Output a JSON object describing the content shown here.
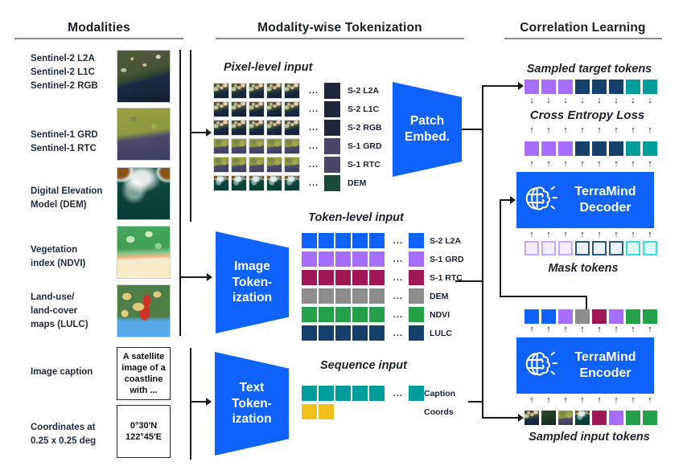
{
  "colors": {
    "blue": "#0f62fe",
    "purple": "#a56eff",
    "magenta": "#9f1853",
    "gray": "#8d8d8d",
    "green": "#24a148",
    "navy": "#15406b",
    "teal": "#009d9a",
    "yellow": "#f1c21b",
    "mask_purple_fill": "#f3edff",
    "mask_purple_border": "#c9a9ff",
    "mask_blue_fill": "#e9f2f9",
    "mask_blue_border": "#30567d",
    "mask_teal_fill": "#dbfbf4",
    "mask_teal_border": "#3ddbd9",
    "chip_s2": "#20263a",
    "chip_s1": "#4a4668",
    "chip_dem": "#1b4a38",
    "block_blue": "#0f62fe",
    "underline_gray": "#8a8a8a"
  },
  "modalities": {
    "title": "Modalities",
    "groups": [
      {
        "lines": [
          "Sentinel-2 L2A",
          "Sentinel-2 L1C",
          "Sentinel-2 RGB"
        ]
      },
      {
        "lines": [
          "Sentinel-1 GRD",
          "Sentinel-1 RTC"
        ]
      },
      {
        "lines": [
          "Digital Elevation",
          "Model (DEM)"
        ]
      },
      {
        "lines": [
          "Vegetation",
          "index (NDVI)"
        ]
      },
      {
        "lines": [
          "Land-use/",
          "land-cover",
          "maps (LULC)"
        ]
      },
      {
        "lines": [
          "Image caption"
        ],
        "box_lines": [
          "A satellite",
          "image of a",
          "coastline",
          "with ..."
        ]
      },
      {
        "lines": [
          "Coordinates at",
          "0.25 x 0.25 deg"
        ],
        "box_lines": [
          "0°30′N",
          "122°45′E"
        ]
      }
    ]
  },
  "tokenization": {
    "title": "Modality-wise Tokenization",
    "pixel_input": {
      "label": "Pixel-level input",
      "ellipsis": "...",
      "rows": [
        {
          "label": "S-2 L2A",
          "tile": "s2",
          "chip": "chip_s2"
        },
        {
          "label": "S-2 L1C",
          "tile": "s2",
          "chip": "chip_s2"
        },
        {
          "label": "S-2 RGB",
          "tile": "s2",
          "chip": "chip_s2"
        },
        {
          "label": "S-1 GRD",
          "tile": "s1",
          "chip": "chip_s1"
        },
        {
          "label": "S-1 RTC",
          "tile": "s1",
          "chip": "chip_s1"
        },
        {
          "label": "DEM",
          "tile": "dem",
          "chip": "chip_dem"
        }
      ]
    },
    "patch_embed": {
      "lines": [
        "Patch",
        "Embed."
      ]
    },
    "image_tokenizer": {
      "lines": [
        "Image",
        "Token-",
        "ization"
      ]
    },
    "token_input": {
      "label": "Token-level input",
      "ellipsis": "...",
      "rows": [
        {
          "label": "S-2 L2A",
          "color": "blue"
        },
        {
          "label": "S-1 GRD",
          "color": "purple"
        },
        {
          "label": "S-1 RTC",
          "color": "magenta"
        },
        {
          "label": "DEM",
          "color": "gray"
        },
        {
          "label": "NDVI",
          "color": "green"
        },
        {
          "label": "LULC",
          "color": "navy"
        }
      ]
    },
    "text_tokenizer": {
      "lines": [
        "Text",
        "Token-",
        "ization"
      ]
    },
    "sequence_input": {
      "label": "Sequence input",
      "ellipsis": "...",
      "rows": [
        {
          "label": "Caption",
          "color": "teal",
          "count": 5,
          "chip": true
        },
        {
          "label": "Coords",
          "color": "yellow",
          "count": 2,
          "chip": false
        }
      ]
    }
  },
  "correlation": {
    "title": "Correlation Learning",
    "sampled_target_label": "Sampled target tokens",
    "loss_label": "Cross Entropy Loss",
    "decoder": {
      "lines": [
        "TerraMind",
        "Decoder"
      ]
    },
    "mask_label": "Mask tokens",
    "encoder": {
      "lines": [
        "TerraMind",
        "Encoder"
      ]
    },
    "sampled_input_label": "Sampled input tokens",
    "rows": {
      "target": [
        "purple",
        "purple",
        "purple",
        "navy",
        "navy",
        "navy",
        "teal",
        "teal"
      ],
      "predicted": [
        "purple",
        "purple",
        "purple",
        "navy",
        "navy",
        "navy",
        "teal",
        "teal"
      ],
      "mask": [
        "mask_purple",
        "mask_purple",
        "mask_purple",
        "mask_blue",
        "mask_blue",
        "mask_blue",
        "mask_teal",
        "mask_teal"
      ],
      "encoder_output": [
        "blue",
        "blue",
        "purple",
        "gray",
        "magenta",
        "purple",
        "green",
        "green"
      ],
      "encoder_input": [
        "img_s2",
        "img_s2b",
        "img_s1",
        "img_dem",
        "magenta",
        "purple",
        "green",
        "green"
      ]
    }
  }
}
